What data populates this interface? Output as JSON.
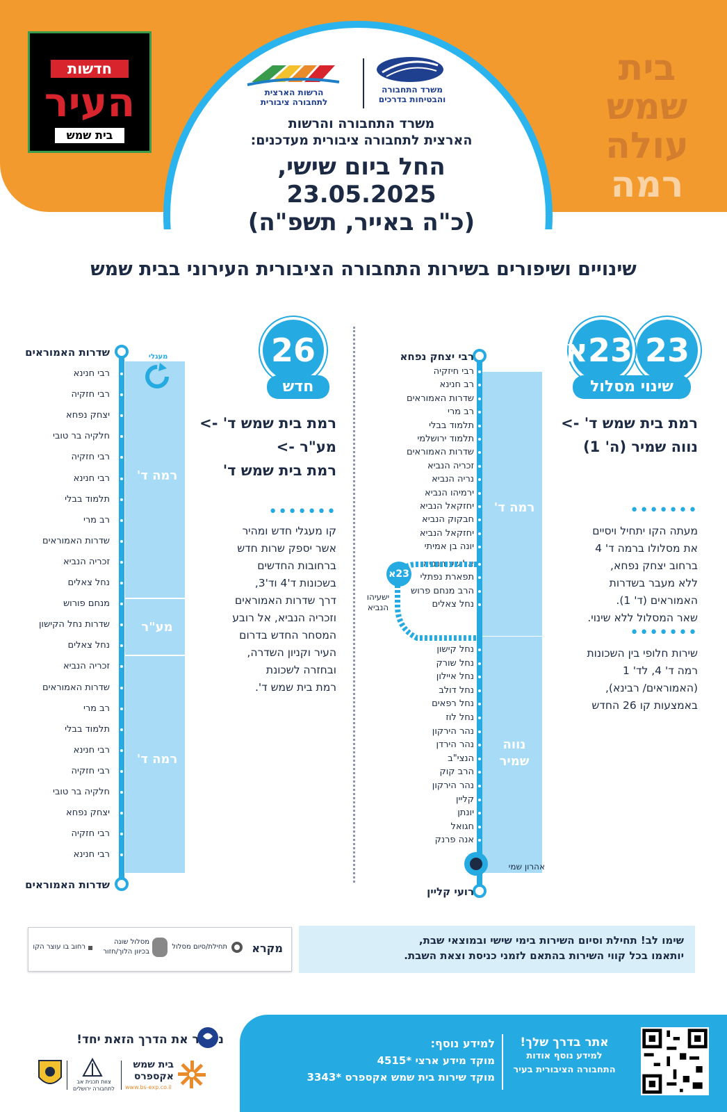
{
  "header": {
    "newspaper_logo": {
      "top": "חדשות",
      "middle": "העיר",
      "bottom": "בית שמש"
    },
    "side_slogan": [
      "בית",
      "שמש",
      "עולה",
      "רמה"
    ],
    "ministry_logo_text": [
      "משרד התחבורה",
      "והבטיחות בדרכים"
    ],
    "authority_logo_text": [
      "הרשות הארצית",
      "לתחבורה ציבורית"
    ],
    "subtitle_lines": [
      "משרד התחבורה והרשות",
      "הארצית לתחבורה ציבורית מעדכנים:"
    ],
    "main_lines": [
      "החל ביום שישי,",
      "23.05.2025",
      "(כ\"ה באייר, תשפ\"ה)"
    ]
  },
  "title": "שינויים ושיפורים בשירות התחבורה הציבורית העירוני בבית שמש",
  "routes": {
    "r23": {
      "badge_a": "23",
      "badge_b": "23א",
      "badge_caption": "שינוי מסלול",
      "title_lines": [
        "רמת בית שמש ד' ->",
        "נווה שמיר (ה' 1)"
      ],
      "body1_lines": [
        "מעתה הקו יתחיל ויסיים",
        "את מסלולו ברמה ד' 4",
        "ברחוב יצחק נפחא,",
        "ללא מעבר בשדרות",
        "האמוראים (ד' 1).",
        "שאר המסלול ללא שינוי."
      ],
      "body2_lines": [
        "שירות חלופי בין השכונות",
        "רמה ד' 4, לד' 1",
        "(האמוראים/ רבינא),",
        "באמצעות קו 26 החדש"
      ]
    },
    "r26": {
      "badge": "26",
      "badge_caption": "חדש",
      "title_lines": [
        "רמת בית שמש ד' ->",
        "מע\"ר ->",
        "רמת בית שמש ד'"
      ],
      "body_lines": [
        "קו מעגלי חדש ומהיר",
        "אשר יספק שרות חדש",
        "ברחובות החדשים",
        "בשכונות ד'4 וד'3,",
        "דרך שדרות האמוראים",
        "וזכריה הנביא, אל רובע",
        "המסחר החדש בדרום",
        "העיר וקניון השדרה,",
        "ובחזרה לשכונת",
        "רמת בית שמש ד'."
      ]
    }
  },
  "map23": {
    "start": "רבי יצחק נפחא",
    "end": "רועי קליין",
    "zone1": "רמה ד'",
    "zone2_lines": [
      "נווה",
      "שמיר"
    ],
    "branch_badge": "23א",
    "branch_label_lines": [
      "ישעיהו",
      "הנביא"
    ],
    "terminal_label": "אהרון שמי",
    "stops": [
      "רבי חיזקיה",
      "רב חנינא",
      "שדרות האמוראים",
      "רב מרי",
      "תלמוד בבלי",
      "תלמוד ירושלמי",
      "שדרות האמוראים",
      "זכריה הנביא",
      "נריה הנביא",
      "ירמיהו הנביא",
      "יחזקאל הנביא",
      "חבקוק הנביא",
      "יחזקאל הנביא",
      "יונה בן אמיתי",
      "אלישע הנביא",
      "תפארת נפתלי",
      "הרב מנחם פרוש",
      "נחל צאלים",
      "נחל קישון",
      "נחל שורק",
      "נחל איילון",
      "נחל דולב",
      "נחל רפאים",
      "נחל לוז",
      "נהר הירקון",
      "נהר הירדן",
      "הנצי\"ב",
      "הרב קוק",
      "נהר הירקון",
      "קליין",
      "יונתן",
      "חגואל",
      "אנה פרנק"
    ]
  },
  "map26": {
    "start": "שדרות האמוראים",
    "end": "שדרות האמוראים",
    "circular_label": "מעגלי",
    "zones": [
      "רמה ד'",
      "מע\"ר",
      "רמה ד'"
    ],
    "stops": [
      "רבי חנינא",
      "רבי חזקיה",
      "יצחק נפחא",
      "חלקיה בר טובי",
      "רבי חזקיה",
      "רבי חנינא",
      "תלמוד בבלי",
      "רב מרי",
      "שדרות האמוראים",
      "זכריה הנביא",
      "נחל צאלים",
      "מנחם פורוש",
      "שדרות נחל הקישון",
      "נחל צאלים",
      "זכריה הנביא",
      "שדרות האמוראים",
      "רב מרי",
      "תלמוד בבלי",
      "רבי חנינא",
      "רבי חזקיה",
      "חלקיה בר טובי",
      "יצחק נפחא",
      "רבי חזקיה",
      "רבי חנינא"
    ]
  },
  "notice_lines": [
    "שימו לב! תחילת וסיום השירות בימי שישי ובמוצאי שבת,",
    "יותאמו בכל קווי השירות בהתאם לזמני כניסת וצאת השבת."
  ],
  "legend": {
    "title": "מקרא",
    "item1": "תחילת/סיום מסלול",
    "item2_lines": [
      "מסלול שונה",
      "בכיוון הלוך/חזור"
    ],
    "item3": "רחוב בו עוצר הקו"
  },
  "footer": {
    "qr_lines": [
      "אתר בדרך שלך!",
      "למידע נוסף אודות",
      "התחבורה הציבורית בעיר"
    ],
    "info_title": "למידע נוסף:",
    "info_lines": [
      "מוקד מידע ארצי *4515",
      "מוקד שירות בית שמש אקספרס *3343"
    ],
    "slogan": "נעבור את הדרך הזאת יחד!",
    "bsexp_logo_lines": [
      "בית שמש",
      "אקספרס"
    ],
    "bsexp_url": "www.bs-exp.co.il",
    "jerusalem_logo_lines": [
      "צוות תכנית אב",
      "לתחבורה ירושלים"
    ]
  },
  "colors": {
    "orange": "#f39a2e",
    "blue": "#25aae2",
    "light_blue": "#a8dbf5",
    "navy": "#1c2a44"
  }
}
